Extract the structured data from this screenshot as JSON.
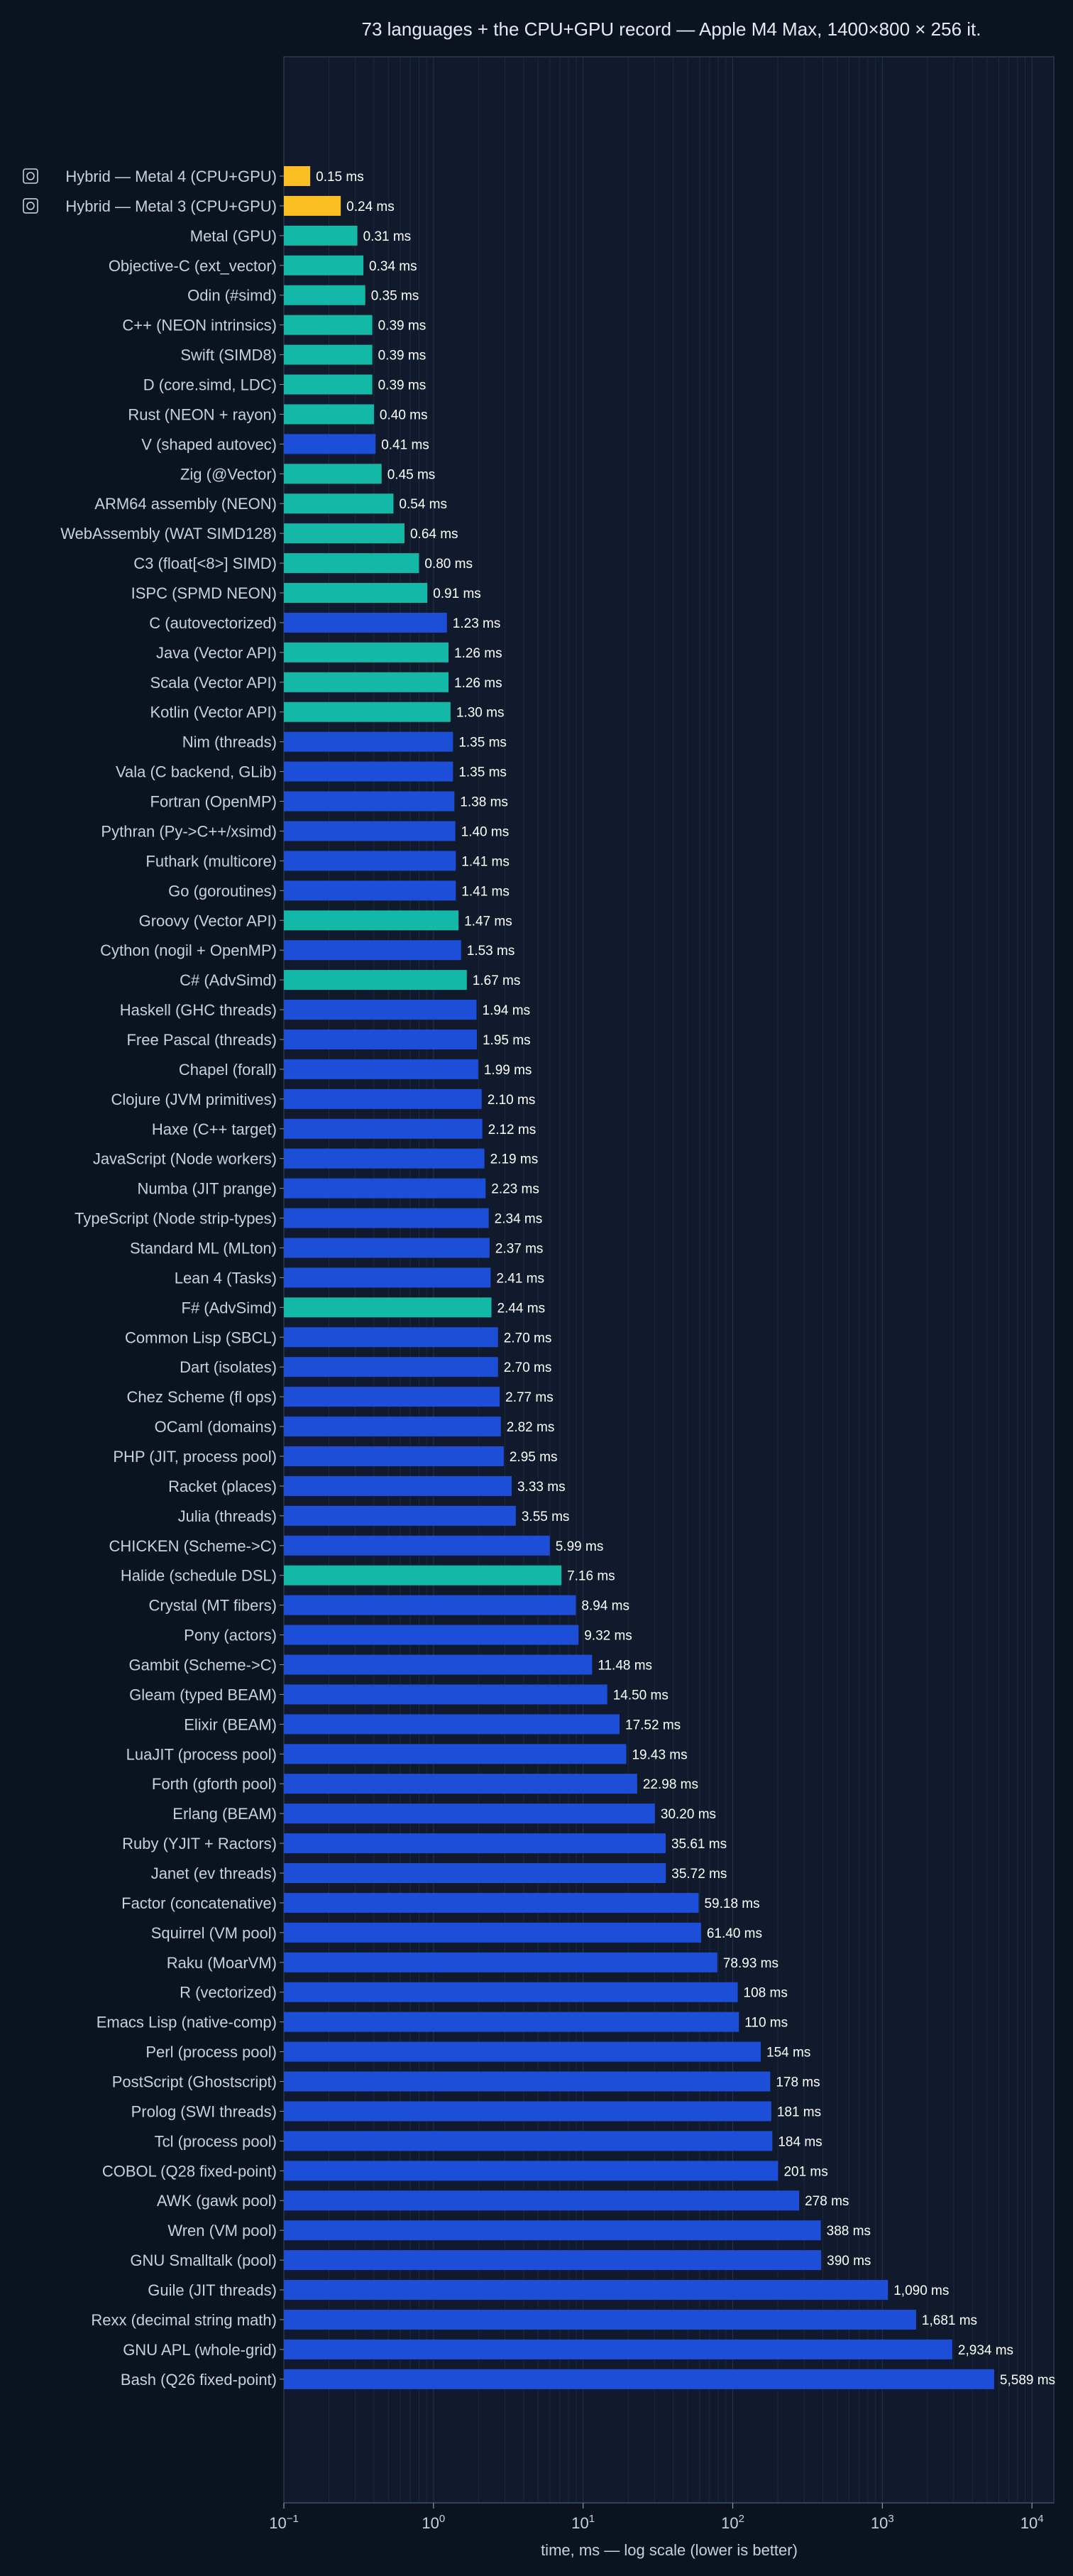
{
  "chart_data": {
    "type": "bar",
    "orientation": "horizontal",
    "title": "73 languages + the CPU+GPU record — Apple M4 Max, 1400×800 × 256 it.",
    "xlabel": "time, ms — log scale (lower is better)",
    "ylabel": "",
    "xscale": "log",
    "xlim": [
      0.1,
      14000
    ],
    "x_ticks": [
      {
        "value": 0.1,
        "base": "10",
        "exp": "−1"
      },
      {
        "value": 1,
        "base": "10",
        "exp": "0"
      },
      {
        "value": 10,
        "base": "10",
        "exp": "1"
      },
      {
        "value": 100,
        "base": "10",
        "exp": "2"
      },
      {
        "value": 1000,
        "base": "10",
        "exp": "3"
      },
      {
        "value": 10000,
        "base": "10",
        "exp": "4"
      }
    ],
    "grid": "vertical minor",
    "colors": {
      "background": "#0b1220",
      "plot_background": "#101a2c",
      "plot_border": "#2a3a55",
      "grid": "#1d2a40",
      "text": "#c9d1dd",
      "title": "#e6ebf2",
      "value_label": "#ffffff",
      "hybrid": "#fbbf24",
      "simd": "#14b8a6",
      "other": "#1d4ed8"
    },
    "bars": [
      {
        "label": "Hybrid — Metal 4 (CPU+GPU)",
        "value": 0.15,
        "value_label": "0.15 ms",
        "group": "hybrid",
        "icon": "hybrid-chip-icon"
      },
      {
        "label": "Hybrid — Metal 3 (CPU+GPU)",
        "value": 0.24,
        "value_label": "0.24 ms",
        "group": "hybrid",
        "icon": "hybrid-chip-icon"
      },
      {
        "label": "Metal (GPU)",
        "value": 0.31,
        "value_label": "0.31 ms",
        "group": "simd"
      },
      {
        "label": "Objective-C (ext_vector)",
        "value": 0.34,
        "value_label": "0.34 ms",
        "group": "simd"
      },
      {
        "label": "Odin (#simd)",
        "value": 0.35,
        "value_label": "0.35 ms",
        "group": "simd"
      },
      {
        "label": "C++ (NEON intrinsics)",
        "value": 0.39,
        "value_label": "0.39 ms",
        "group": "simd"
      },
      {
        "label": "Swift (SIMD8)",
        "value": 0.39,
        "value_label": "0.39 ms",
        "group": "simd"
      },
      {
        "label": "D (core.simd, LDC)",
        "value": 0.39,
        "value_label": "0.39 ms",
        "group": "simd"
      },
      {
        "label": "Rust (NEON + rayon)",
        "value": 0.4,
        "value_label": "0.40 ms",
        "group": "simd"
      },
      {
        "label": "V (shaped autovec)",
        "value": 0.41,
        "value_label": "0.41 ms",
        "group": "other"
      },
      {
        "label": "Zig (@Vector)",
        "value": 0.45,
        "value_label": "0.45 ms",
        "group": "simd"
      },
      {
        "label": "ARM64 assembly (NEON)",
        "value": 0.54,
        "value_label": "0.54 ms",
        "group": "simd"
      },
      {
        "label": "WebAssembly (WAT SIMD128)",
        "value": 0.64,
        "value_label": "0.64 ms",
        "group": "simd"
      },
      {
        "label": "C3 (float[<8>] SIMD)",
        "value": 0.8,
        "value_label": "0.80 ms",
        "group": "simd"
      },
      {
        "label": "ISPC (SPMD NEON)",
        "value": 0.91,
        "value_label": "0.91 ms",
        "group": "simd"
      },
      {
        "label": "C (autovectorized)",
        "value": 1.23,
        "value_label": "1.23 ms",
        "group": "other"
      },
      {
        "label": "Java (Vector API)",
        "value": 1.26,
        "value_label": "1.26 ms",
        "group": "simd"
      },
      {
        "label": "Scala (Vector API)",
        "value": 1.26,
        "value_label": "1.26 ms",
        "group": "simd"
      },
      {
        "label": "Kotlin (Vector API)",
        "value": 1.3,
        "value_label": "1.30 ms",
        "group": "simd"
      },
      {
        "label": "Nim (threads)",
        "value": 1.35,
        "value_label": "1.35 ms",
        "group": "other"
      },
      {
        "label": "Vala (C backend, GLib)",
        "value": 1.35,
        "value_label": "1.35 ms",
        "group": "other"
      },
      {
        "label": "Fortran (OpenMP)",
        "value": 1.38,
        "value_label": "1.38 ms",
        "group": "other"
      },
      {
        "label": "Pythran (Py->C++/xsimd)",
        "value": 1.4,
        "value_label": "1.40 ms",
        "group": "other"
      },
      {
        "label": "Futhark (multicore)",
        "value": 1.41,
        "value_label": "1.41 ms",
        "group": "other"
      },
      {
        "label": "Go (goroutines)",
        "value": 1.41,
        "value_label": "1.41 ms",
        "group": "other"
      },
      {
        "label": "Groovy (Vector API)",
        "value": 1.47,
        "value_label": "1.47 ms",
        "group": "simd"
      },
      {
        "label": "Cython (nogil + OpenMP)",
        "value": 1.53,
        "value_label": "1.53 ms",
        "group": "other"
      },
      {
        "label": "C# (AdvSimd)",
        "value": 1.67,
        "value_label": "1.67 ms",
        "group": "simd"
      },
      {
        "label": "Haskell (GHC threads)",
        "value": 1.94,
        "value_label": "1.94 ms",
        "group": "other"
      },
      {
        "label": "Free Pascal (threads)",
        "value": 1.95,
        "value_label": "1.95 ms",
        "group": "other"
      },
      {
        "label": "Chapel (forall)",
        "value": 1.99,
        "value_label": "1.99 ms",
        "group": "other"
      },
      {
        "label": "Clojure (JVM primitives)",
        "value": 2.1,
        "value_label": "2.10 ms",
        "group": "other"
      },
      {
        "label": "Haxe (C++ target)",
        "value": 2.12,
        "value_label": "2.12 ms",
        "group": "other"
      },
      {
        "label": "JavaScript (Node workers)",
        "value": 2.19,
        "value_label": "2.19 ms",
        "group": "other"
      },
      {
        "label": "Numba (JIT prange)",
        "value": 2.23,
        "value_label": "2.23 ms",
        "group": "other"
      },
      {
        "label": "TypeScript (Node strip-types)",
        "value": 2.34,
        "value_label": "2.34 ms",
        "group": "other"
      },
      {
        "label": "Standard ML (MLton)",
        "value": 2.37,
        "value_label": "2.37 ms",
        "group": "other"
      },
      {
        "label": "Lean 4 (Tasks)",
        "value": 2.41,
        "value_label": "2.41 ms",
        "group": "other"
      },
      {
        "label": "F# (AdvSimd)",
        "value": 2.44,
        "value_label": "2.44 ms",
        "group": "simd"
      },
      {
        "label": "Common Lisp (SBCL)",
        "value": 2.7,
        "value_label": "2.70 ms",
        "group": "other"
      },
      {
        "label": "Dart (isolates)",
        "value": 2.7,
        "value_label": "2.70 ms",
        "group": "other"
      },
      {
        "label": "Chez Scheme (fl ops)",
        "value": 2.77,
        "value_label": "2.77 ms",
        "group": "other"
      },
      {
        "label": "OCaml (domains)",
        "value": 2.82,
        "value_label": "2.82 ms",
        "group": "other"
      },
      {
        "label": "PHP (JIT, process pool)",
        "value": 2.95,
        "value_label": "2.95 ms",
        "group": "other"
      },
      {
        "label": "Racket (places)",
        "value": 3.33,
        "value_label": "3.33 ms",
        "group": "other"
      },
      {
        "label": "Julia (threads)",
        "value": 3.55,
        "value_label": "3.55 ms",
        "group": "other"
      },
      {
        "label": "CHICKEN (Scheme->C)",
        "value": 5.99,
        "value_label": "5.99 ms",
        "group": "other"
      },
      {
        "label": "Halide (schedule DSL)",
        "value": 7.16,
        "value_label": "7.16 ms",
        "group": "simd"
      },
      {
        "label": "Crystal (MT fibers)",
        "value": 8.94,
        "value_label": "8.94 ms",
        "group": "other"
      },
      {
        "label": "Pony (actors)",
        "value": 9.32,
        "value_label": "9.32 ms",
        "group": "other"
      },
      {
        "label": "Gambit (Scheme->C)",
        "value": 11.48,
        "value_label": "11.48 ms",
        "group": "other"
      },
      {
        "label": "Gleam (typed BEAM)",
        "value": 14.5,
        "value_label": "14.50 ms",
        "group": "other"
      },
      {
        "label": "Elixir (BEAM)",
        "value": 17.52,
        "value_label": "17.52 ms",
        "group": "other"
      },
      {
        "label": "LuaJIT (process pool)",
        "value": 19.43,
        "value_label": "19.43 ms",
        "group": "other"
      },
      {
        "label": "Forth (gforth pool)",
        "value": 22.98,
        "value_label": "22.98 ms",
        "group": "other"
      },
      {
        "label": "Erlang (BEAM)",
        "value": 30.2,
        "value_label": "30.20 ms",
        "group": "other"
      },
      {
        "label": "Ruby (YJIT + Ractors)",
        "value": 35.61,
        "value_label": "35.61 ms",
        "group": "other"
      },
      {
        "label": "Janet (ev threads)",
        "value": 35.72,
        "value_label": "35.72 ms",
        "group": "other"
      },
      {
        "label": "Factor (concatenative)",
        "value": 59.18,
        "value_label": "59.18 ms",
        "group": "other"
      },
      {
        "label": "Squirrel (VM pool)",
        "value": 61.4,
        "value_label": "61.40 ms",
        "group": "other"
      },
      {
        "label": "Raku (MoarVM)",
        "value": 78.93,
        "value_label": "78.93 ms",
        "group": "other"
      },
      {
        "label": "R (vectorized)",
        "value": 108,
        "value_label": "108 ms",
        "group": "other"
      },
      {
        "label": "Emacs Lisp (native-comp)",
        "value": 110,
        "value_label": "110 ms",
        "group": "other"
      },
      {
        "label": "Perl (process pool)",
        "value": 154,
        "value_label": "154 ms",
        "group": "other"
      },
      {
        "label": "PostScript (Ghostscript)",
        "value": 178,
        "value_label": "178 ms",
        "group": "other"
      },
      {
        "label": "Prolog (SWI threads)",
        "value": 181,
        "value_label": "181 ms",
        "group": "other"
      },
      {
        "label": "Tcl (process pool)",
        "value": 184,
        "value_label": "184 ms",
        "group": "other"
      },
      {
        "label": "COBOL (Q28 fixed-point)",
        "value": 201,
        "value_label": "201 ms",
        "group": "other"
      },
      {
        "label": "AWK (gawk pool)",
        "value": 278,
        "value_label": "278 ms",
        "group": "other"
      },
      {
        "label": "Wren (VM pool)",
        "value": 388,
        "value_label": "388 ms",
        "group": "other"
      },
      {
        "label": "GNU Smalltalk (pool)",
        "value": 390,
        "value_label": "390 ms",
        "group": "other"
      },
      {
        "label": "Guile (JIT threads)",
        "value": 1090,
        "value_label": "1,090 ms",
        "group": "other"
      },
      {
        "label": "Rexx (decimal string math)",
        "value": 1681,
        "value_label": "1,681 ms",
        "group": "other"
      },
      {
        "label": "GNU APL (whole-grid)",
        "value": 2934,
        "value_label": "2,934 ms",
        "group": "other"
      },
      {
        "label": "Bash (Q26 fixed-point)",
        "value": 5589,
        "value_label": "5,589 ms",
        "group": "other"
      }
    ]
  }
}
